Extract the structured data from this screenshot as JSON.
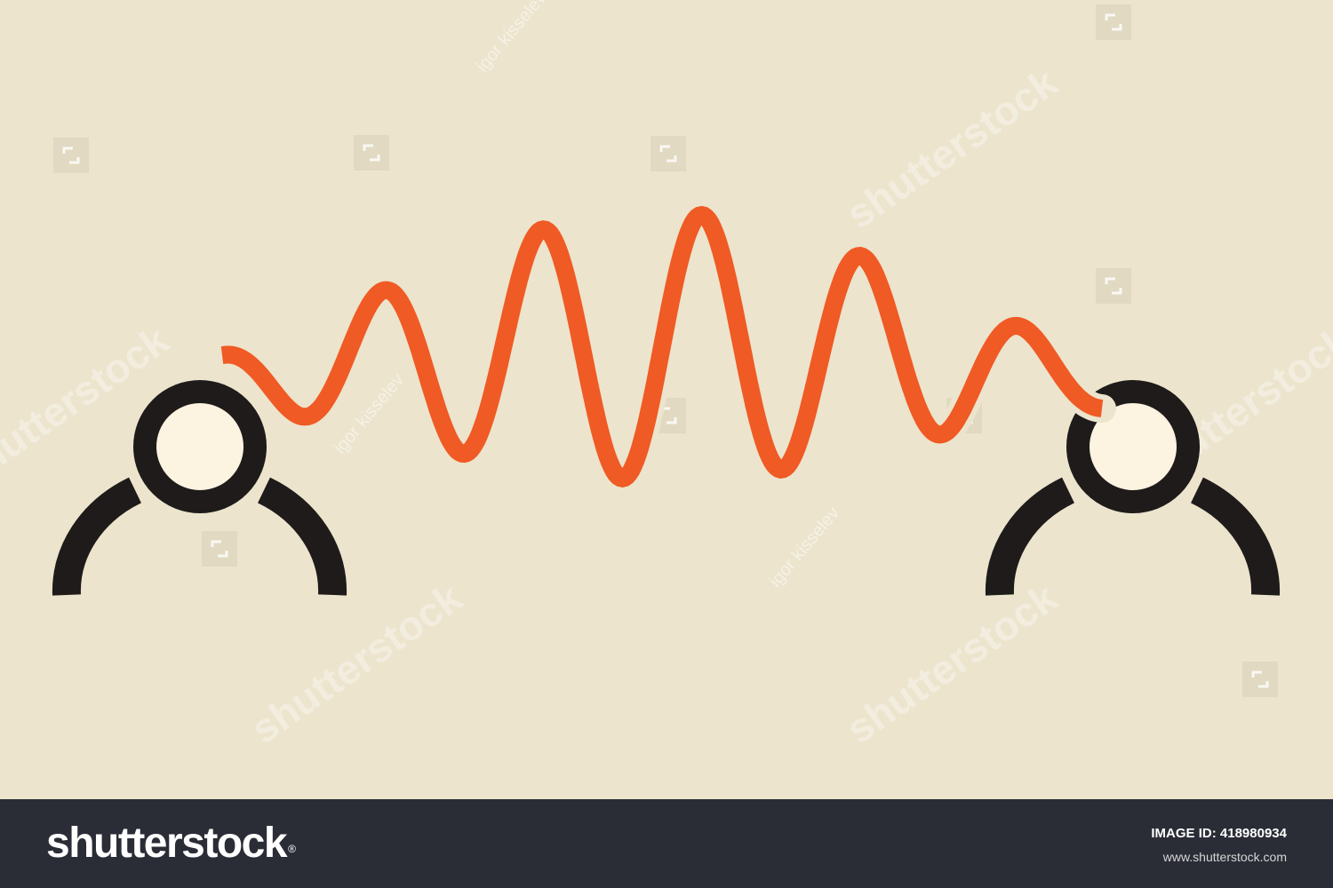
{
  "colors": {
    "background": "#ece4cd",
    "wave": "#f05a24",
    "figure_dark": "#1e1b1a",
    "head_fill": "#fcf3e0",
    "footer_bg": "#2a2d36"
  },
  "illustration": {
    "left_figure": "person-icon",
    "right_figure": "person-icon",
    "connector": "sine-wave"
  },
  "watermarks": {
    "logo_text": "shutterstock",
    "artist": "igor kisselev"
  },
  "footer": {
    "brand": "shutterstock",
    "brand_mark": "®",
    "image_id_label": "IMAGE ID:",
    "image_id": "418980934",
    "url": "www.shutterstock.com"
  }
}
